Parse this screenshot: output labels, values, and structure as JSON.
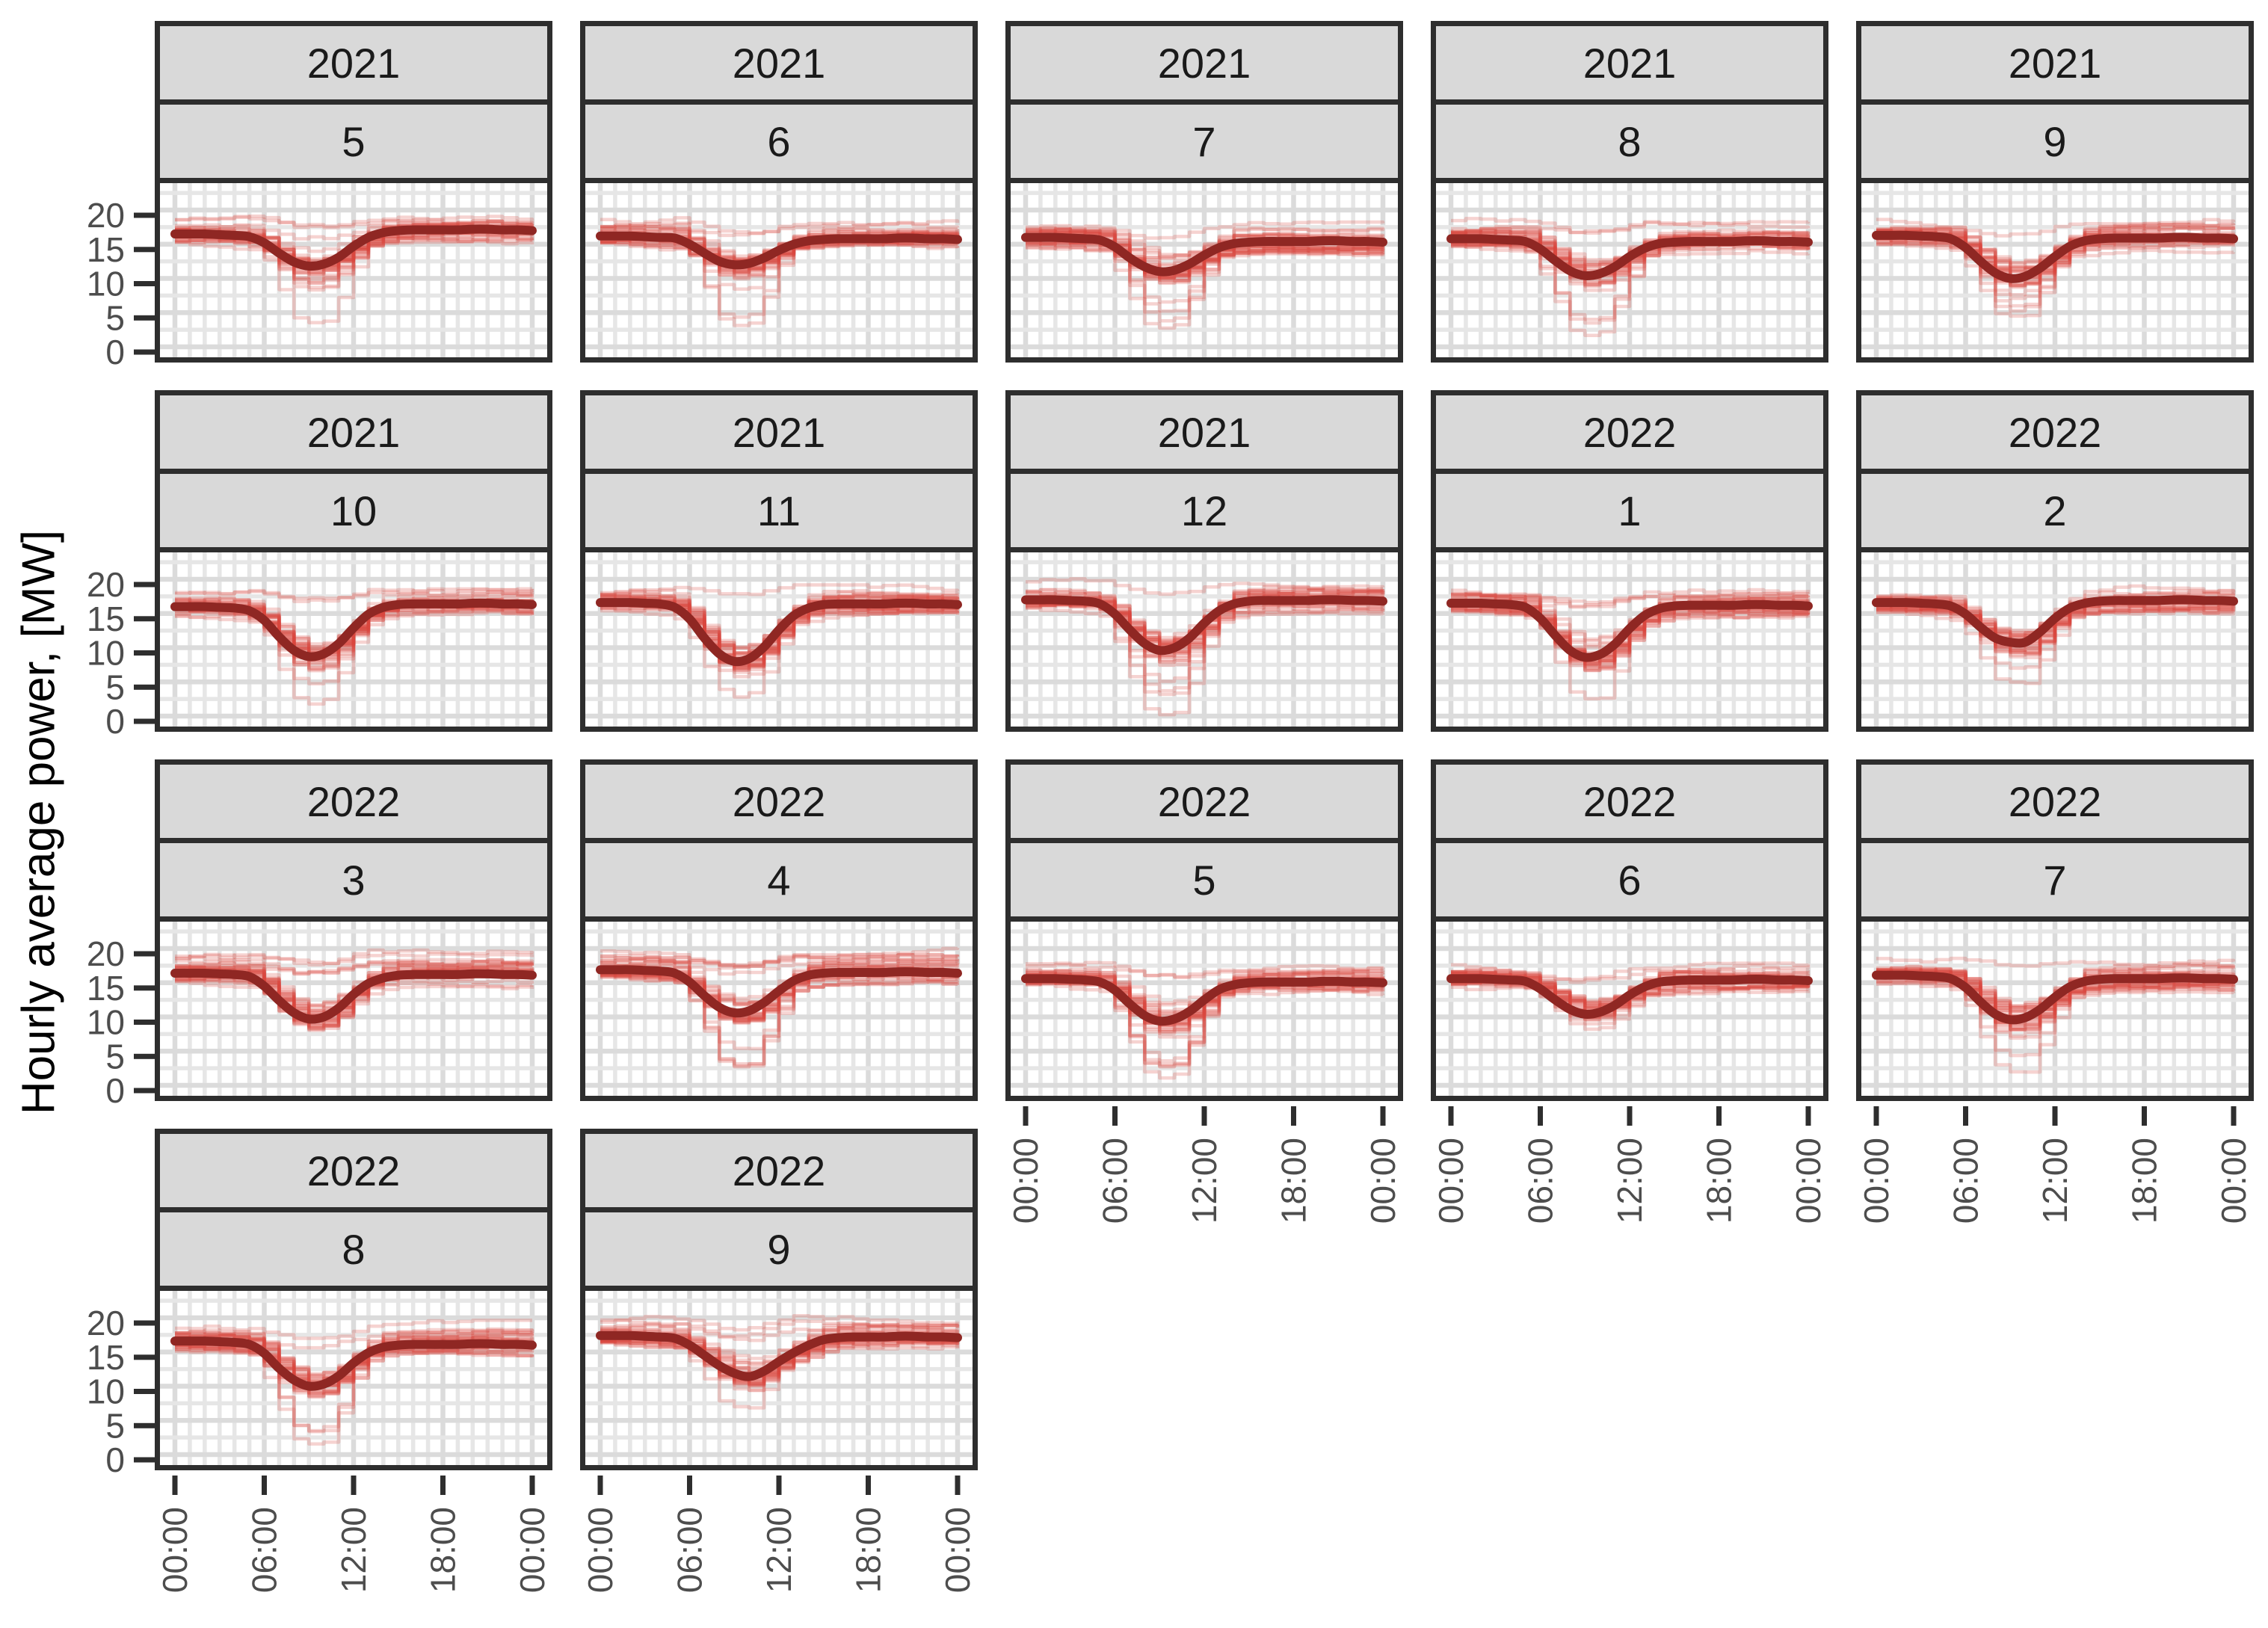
{
  "chart_data": {
    "type": "line",
    "title": "",
    "ylabel": "Hourly average power, [MW]",
    "xlabel": "",
    "x_tick_labels": [
      "00:00",
      "06:00",
      "12:00",
      "18:00",
      "00:00"
    ],
    "x_tick_hours": [
      0,
      6,
      12,
      18,
      24
    ],
    "y_tick_labels": [
      "20",
      "15",
      "10",
      "5",
      "0"
    ],
    "y_tick_values": [
      20,
      15,
      10,
      5,
      0
    ],
    "x_range_hours": [
      0,
      24
    ],
    "ylim_display": [
      -1.5,
      23.9
    ],
    "grid": "minor-and-major-both-axes",
    "legend": "none",
    "facet_layout": {
      "rows": 4,
      "cols": 5,
      "fill": "rowwise",
      "facet_by": [
        "year",
        "month"
      ]
    },
    "series_style": {
      "day_lines": "one semi-transparent red step line per day of the month",
      "mean_line": "smoothed dark-red monthly mean daily profile"
    },
    "colors": {
      "day_line": "#D9453E",
      "day_line_opacity": 0.24,
      "mean_line": "#8F2723",
      "grid_minor": "#E6E6E6",
      "grid_major": "#DBDBDB",
      "strip_bg": "#D9D9D9",
      "strip_text": "#1A1A1A",
      "axis_text": "#4D4D4D",
      "border": "#2E2E2E",
      "background": "#FFFFFF"
    },
    "facets": [
      {
        "year": "2021",
        "month": "5",
        "n_days": 31,
        "mean_hourly": [
          16.5,
          16.5,
          16.5,
          16.4,
          16.3,
          16.1,
          15.2,
          13.7,
          12.4,
          11.8,
          12.1,
          13.1,
          14.7,
          16.0,
          16.7,
          17.0,
          17.1,
          17.1,
          17.1,
          17.1,
          17.2,
          17.2,
          17.1,
          17.1,
          17.0
        ]
      },
      {
        "year": "2021",
        "month": "6",
        "n_days": 30,
        "mean_hourly": [
          16.2,
          16.2,
          16.2,
          16.1,
          16.0,
          15.9,
          15.0,
          13.7,
          12.5,
          12.0,
          12.2,
          13.0,
          14.1,
          15.0,
          15.5,
          15.7,
          15.8,
          15.8,
          15.8,
          15.8,
          15.9,
          15.9,
          15.8,
          15.8,
          15.7
        ]
      },
      {
        "year": "2021",
        "month": "7",
        "n_days": 31,
        "mean_hourly": [
          16.0,
          16.0,
          16.0,
          15.9,
          15.8,
          15.6,
          14.6,
          13.0,
          11.7,
          11.0,
          11.2,
          12.1,
          13.4,
          14.5,
          15.1,
          15.3,
          15.4,
          15.4,
          15.4,
          15.4,
          15.5,
          15.5,
          15.4,
          15.4,
          15.3
        ]
      },
      {
        "year": "2021",
        "month": "8",
        "n_days": 31,
        "mean_hourly": [
          15.8,
          15.8,
          15.8,
          15.7,
          15.6,
          15.4,
          14.3,
          12.6,
          11.1,
          10.4,
          10.7,
          11.7,
          13.2,
          14.4,
          15.1,
          15.3,
          15.4,
          15.4,
          15.4,
          15.4,
          15.5,
          15.5,
          15.4,
          15.4,
          15.3
        ]
      },
      {
        "year": "2021",
        "month": "9",
        "n_days": 30,
        "mean_hourly": [
          16.3,
          16.3,
          16.3,
          16.2,
          16.1,
          15.8,
          14.5,
          12.5,
          10.8,
          10.0,
          10.3,
          11.5,
          13.2,
          14.7,
          15.5,
          15.8,
          15.9,
          15.9,
          15.9,
          15.9,
          16.0,
          16.0,
          15.9,
          15.9,
          15.8
        ]
      },
      {
        "year": "2021",
        "month": "10",
        "n_days": 31,
        "mean_hourly": [
          16.0,
          16.0,
          16.0,
          15.9,
          15.8,
          15.4,
          14.0,
          11.6,
          9.6,
          8.7,
          9.1,
          10.6,
          12.9,
          14.9,
          15.9,
          16.3,
          16.4,
          16.4,
          16.4,
          16.4,
          16.5,
          16.5,
          16.4,
          16.4,
          16.3
        ]
      },
      {
        "year": "2021",
        "month": "11",
        "n_days": 30,
        "mean_hourly": [
          16.6,
          16.6,
          16.6,
          16.5,
          16.4,
          15.9,
          14.2,
          11.4,
          9.1,
          8.0,
          8.4,
          10.1,
          12.6,
          14.7,
          15.8,
          16.3,
          16.4,
          16.4,
          16.4,
          16.4,
          16.5,
          16.5,
          16.4,
          16.4,
          16.3
        ]
      },
      {
        "year": "2021",
        "month": "12",
        "n_days": 31,
        "mean_hourly": [
          17.0,
          17.0,
          17.0,
          16.9,
          16.8,
          16.4,
          14.9,
          12.6,
          10.6,
          9.6,
          10.0,
          11.4,
          13.6,
          15.4,
          16.4,
          16.8,
          16.9,
          16.9,
          16.9,
          16.9,
          17.0,
          17.0,
          16.9,
          16.9,
          16.8
        ]
      },
      {
        "year": "2022",
        "month": "1",
        "n_days": 31,
        "mean_hourly": [
          16.5,
          16.5,
          16.5,
          16.4,
          16.3,
          15.9,
          14.3,
          11.8,
          9.6,
          8.6,
          9.0,
          10.5,
          12.8,
          14.7,
          15.7,
          16.1,
          16.2,
          16.2,
          16.2,
          16.2,
          16.3,
          16.3,
          16.2,
          16.2,
          16.1
        ]
      },
      {
        "year": "2022",
        "month": "2",
        "n_days": 28,
        "mean_hourly": [
          16.6,
          16.6,
          16.6,
          16.5,
          16.4,
          16.1,
          14.9,
          13.0,
          11.4,
          10.8,
          10.8,
          12.3,
          14.3,
          15.8,
          16.5,
          16.8,
          16.9,
          16.9,
          16.9,
          16.9,
          17.0,
          17.0,
          16.9,
          16.9,
          16.8
        ]
      },
      {
        "year": "2022",
        "month": "3",
        "n_days": 31,
        "mean_hourly": [
          16.4,
          16.4,
          16.4,
          16.3,
          16.2,
          15.9,
          14.5,
          12.4,
          10.6,
          9.7,
          10.0,
          11.3,
          13.3,
          14.9,
          15.7,
          16.1,
          16.2,
          16.2,
          16.2,
          16.2,
          16.3,
          16.3,
          16.2,
          16.2,
          16.1
        ]
      },
      {
        "year": "2022",
        "month": "4",
        "n_days": 30,
        "mean_hourly": [
          16.9,
          16.9,
          16.9,
          16.8,
          16.7,
          16.4,
          15.1,
          13.1,
          11.4,
          10.6,
          10.9,
          12.1,
          13.8,
          15.3,
          16.1,
          16.4,
          16.5,
          16.5,
          16.5,
          16.5,
          16.6,
          16.6,
          16.5,
          16.5,
          16.4
        ]
      },
      {
        "year": "2022",
        "month": "5",
        "n_days": 31,
        "mean_hourly": [
          15.6,
          15.6,
          15.6,
          15.5,
          15.4,
          15.1,
          13.9,
          11.9,
          10.2,
          9.4,
          9.7,
          10.8,
          12.5,
          14.0,
          14.7,
          15.0,
          15.1,
          15.1,
          15.1,
          15.1,
          15.2,
          15.2,
          15.1,
          15.1,
          15.0
        ]
      },
      {
        "year": "2022",
        "month": "6",
        "n_days": 30,
        "mean_hourly": [
          15.6,
          15.6,
          15.6,
          15.5,
          15.4,
          15.2,
          14.1,
          12.5,
          11.1,
          10.4,
          10.7,
          11.7,
          13.2,
          14.4,
          15.1,
          15.3,
          15.4,
          15.4,
          15.4,
          15.4,
          15.5,
          15.5,
          15.4,
          15.4,
          15.3
        ]
      },
      {
        "year": "2022",
        "month": "7",
        "n_days": 31,
        "mean_hourly": [
          16.1,
          16.1,
          16.1,
          16.0,
          15.9,
          15.6,
          14.3,
          12.2,
          10.4,
          9.6,
          9.9,
          11.1,
          12.9,
          14.4,
          15.2,
          15.5,
          15.6,
          15.6,
          15.6,
          15.6,
          15.7,
          15.7,
          15.6,
          15.6,
          15.5
        ]
      },
      {
        "year": "2022",
        "month": "8",
        "n_days": 31,
        "mean_hourly": [
          16.6,
          16.6,
          16.6,
          16.5,
          16.4,
          16.1,
          14.8,
          12.6,
          10.9,
          10.0,
          10.3,
          11.5,
          13.4,
          14.9,
          15.7,
          16.0,
          16.1,
          16.1,
          16.1,
          16.1,
          16.2,
          16.2,
          16.1,
          16.1,
          16.0
        ]
      },
      {
        "year": "2022",
        "month": "9",
        "n_days": 30,
        "mean_hourly": [
          17.4,
          17.4,
          17.4,
          17.3,
          17.2,
          17.0,
          16.0,
          14.5,
          13.0,
          11.9,
          11.4,
          12.2,
          13.6,
          14.9,
          16.0,
          16.8,
          17.1,
          17.2,
          17.2,
          17.2,
          17.3,
          17.3,
          17.2,
          17.2,
          17.1
        ]
      }
    ]
  }
}
